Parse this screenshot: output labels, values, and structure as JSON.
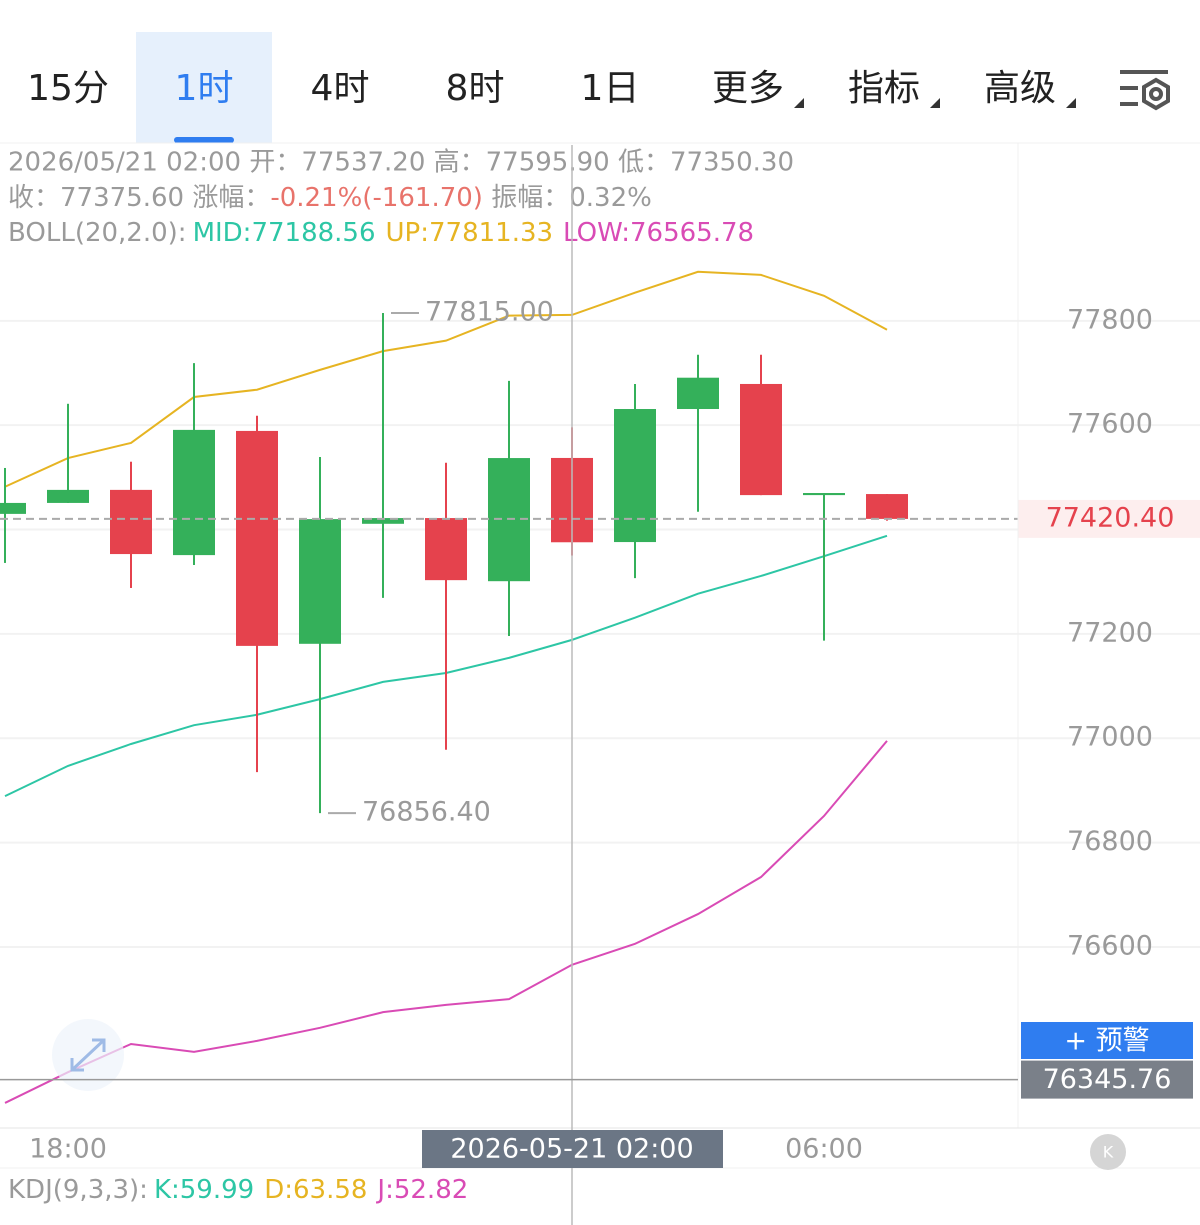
{
  "tabs": [
    {
      "label": "15分",
      "selected": false
    },
    {
      "label": "1时",
      "selected": true
    },
    {
      "label": "4时",
      "selected": false
    },
    {
      "label": "8时",
      "selected": false
    },
    {
      "label": "1日",
      "selected": false
    }
  ],
  "menus": [
    "更多",
    "指标",
    "高级"
  ],
  "info": {
    "line1": "2026/05/21 02:00 开：77537.20 高：77595.90 低：77350.30",
    "line2": {
      "prefix": "收：77375.60 涨幅：",
      "change": "-0.21%(-161.70)",
      "suffix": " 振幅：0.32%"
    },
    "line3": {
      "prefix": "BOLL(20,2.0):",
      "mid": "MID:77188.56",
      "up": "UP:77811.33",
      "low": "LOW:76565.78"
    },
    "kdj": {
      "prefix": "KDJ(9,3,3):",
      "k": "K:59.99",
      "d": "D:63.58",
      "j": "J:52.82"
    }
  },
  "alert_button": "+ 预警",
  "chart_data": {
    "type": "candlestick",
    "categories": [
      null,
      "18:00",
      null,
      null,
      null,
      null,
      null,
      null,
      null,
      "2026-05-21 02:00",
      null,
      null,
      null,
      "06:00",
      null
    ],
    "open": [
      77430,
      77451,
      77476,
      77351,
      77589,
      77181,
      77411,
      77422,
      77301,
      77537.2,
      77376,
      77631,
      77679,
      77466,
      77468
    ],
    "high": [
      77518,
      77641,
      77530,
      77719,
      77618,
      77539,
      77815,
      77528,
      77685,
      77595.9,
      77679,
      77735,
      77735,
      77470,
      77468
    ],
    "low": [
      77336,
      77451,
      77288,
      77332,
      76935,
      76856.4,
      77269,
      76978,
      77196,
      77350.3,
      77307,
      77434,
      77466,
      77187,
      77417
    ],
    "close": [
      77451,
      77476,
      77353,
      77591,
      77177,
      77420,
      77422,
      77303,
      77537,
      77375.6,
      77631,
      77691,
      77466,
      77470,
      77420.4
    ],
    "up_color": "#34b05a",
    "down_color": "#e5424d",
    "overlays": [
      {
        "name": "UP",
        "color": "#e6b422",
        "values": [
          77482,
          77537,
          77566,
          77654,
          77668,
          77706,
          77742,
          77762,
          77810,
          77811.33,
          77854,
          77894,
          77888,
          77848,
          77783
        ]
      },
      {
        "name": "MID",
        "color": "#2dc6a5",
        "values": [
          76889,
          76947,
          76989,
          77025,
          77045,
          77075,
          77108,
          77125,
          77154,
          77188.56,
          77231,
          77277,
          77311,
          77349,
          77388
        ]
      },
      {
        "name": "LOW",
        "color": "#d94bb5",
        "values": [
          76301,
          76360,
          76414,
          76399,
          76420,
          76445,
          76475,
          76489,
          76500,
          76565.78,
          76606,
          76663,
          76734,
          76851,
          76995
        ]
      }
    ],
    "ylim": [
      76253,
      78137
    ],
    "yticks": [
      76600,
      76800,
      77000,
      77200,
      77400,
      77600,
      77800
    ],
    "grid": true,
    "annotations": [
      {
        "label": "77815.00",
        "value": 77815
      },
      {
        "label": "76856.40",
        "value": 76856.4
      }
    ],
    "last_price": {
      "value": 77420.4,
      "label": "77420.40"
    },
    "crosshair": {
      "x": 9,
      "y": {
        "value": 76345.76,
        "label": "76345.76"
      }
    }
  }
}
